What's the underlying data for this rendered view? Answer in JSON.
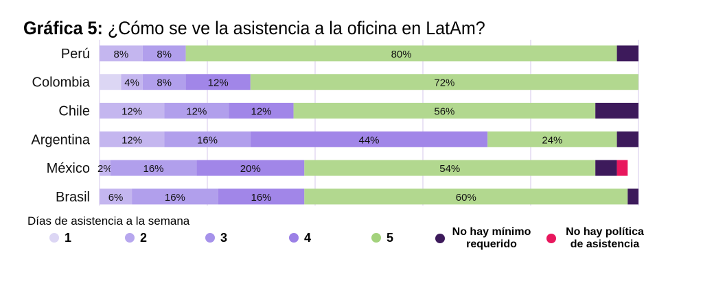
{
  "title": {
    "prefix": "Gráfica 5:",
    "text": "¿Cómo se ve la asistencia a la oficina en LatAm?"
  },
  "legend_title": "Días de asistencia a la semana",
  "chart_data": {
    "type": "bar",
    "orientation": "horizontal",
    "stacked": true,
    "categories": [
      "Perú",
      "Colombia",
      "Chile",
      "Argentina",
      "México",
      "Brasil"
    ],
    "xlim": [
      0,
      100
    ],
    "grid": true,
    "legend_position": "bottom",
    "series": [
      {
        "name": "1",
        "color": "#dcd6f4",
        "values": [
          0,
          4,
          0,
          0,
          0,
          0
        ],
        "labels": [
          "",
          "",
          "",
          "",
          "",
          ""
        ]
      },
      {
        "name": "2",
        "color": "#c4b6ef",
        "values": [
          8,
          4,
          12,
          12,
          2,
          6
        ],
        "labels": [
          "8%",
          "4%",
          "12%",
          "12%",
          "2%",
          "6%"
        ]
      },
      {
        "name": "3",
        "color": "#b19fec",
        "values": [
          8,
          8,
          12,
          16,
          16,
          16
        ],
        "labels": [
          "8%",
          "8%",
          "12%",
          "16%",
          "16%",
          "16%"
        ]
      },
      {
        "name": "4",
        "color": "#a186e8",
        "values": [
          0,
          12,
          12,
          44,
          20,
          16
        ],
        "labels": [
          "",
          "12%",
          "12%",
          "44%",
          "20%",
          "16%"
        ]
      },
      {
        "name": "5",
        "color": "#b2d88f",
        "values": [
          80,
          72,
          56,
          24,
          54,
          60
        ],
        "labels": [
          "80%",
          "72%",
          "56%",
          "24%",
          "54%",
          "60%"
        ]
      },
      {
        "name": "No hay mínimo requerido",
        "color": "#3d1a5b",
        "values": [
          4,
          0,
          8,
          4,
          4,
          2
        ],
        "labels": [
          "",
          "",
          "",
          "",
          "",
          ""
        ]
      },
      {
        "name": "No hay política de asistencia",
        "color": "#e8175d",
        "values": [
          0,
          0,
          0,
          0,
          2,
          0
        ],
        "labels": [
          "",
          "",
          "",
          "",
          "",
          ""
        ]
      }
    ]
  },
  "legend": [
    {
      "label": "1",
      "color": "#dcd6f4"
    },
    {
      "label": "2",
      "color": "#b7a7ee"
    },
    {
      "label": "3",
      "color": "#a692ea"
    },
    {
      "label": "4",
      "color": "#9b80e6"
    },
    {
      "label": "5",
      "color": "#a3d27c"
    },
    {
      "label": "No hay mínimo requerido",
      "color": "#3d1a5b"
    },
    {
      "label": "No hay política de asistencia",
      "color": "#e8175d"
    }
  ]
}
